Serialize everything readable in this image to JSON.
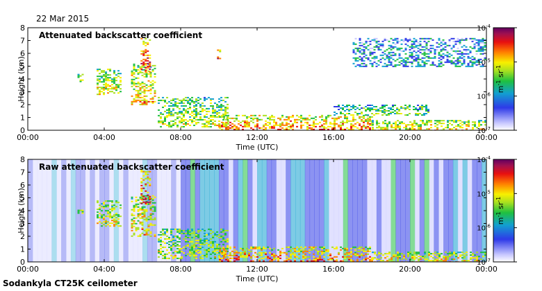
{
  "date_label": "22 Mar 2015",
  "footer_label": "Sodankyla CT25K ceilometer",
  "chart_data": [
    {
      "type": "heatmap",
      "title": "Attenuated backscatter coefficient",
      "xlabel": "Time (UTC)",
      "ylabel": "Height (km)",
      "xlim": [
        0,
        24
      ],
      "ylim": [
        0,
        8
      ],
      "x_ticks": [
        "00:00",
        "04:00",
        "08:00",
        "12:00",
        "16:00",
        "20:00",
        "00:00"
      ],
      "y_ticks": [
        "0",
        "1",
        "2",
        "3",
        "4",
        "5",
        "6",
        "7",
        "8"
      ],
      "colorbar": {
        "label": "m-1 sr-1",
        "scale": "log",
        "range": [
          1e-07,
          0.0001
        ],
        "ticks": [
          {
            "base": "10",
            "exp": "-7"
          },
          {
            "base": "10",
            "exp": "-6"
          },
          {
            "base": "10",
            "exp": "-5"
          },
          {
            "base": "10",
            "exp": "-4"
          }
        ]
      },
      "noise_background": false,
      "features": [
        {
          "t": [
            2.6,
            2.9
          ],
          "h": [
            3.8,
            4.4
          ],
          "level": 0.55
        },
        {
          "t": [
            3.6,
            4.9
          ],
          "h": [
            2.8,
            4.8
          ],
          "level": 0.6
        },
        {
          "t": [
            5.4,
            6.7
          ],
          "h": [
            2.0,
            5.2
          ],
          "level": 0.65
        },
        {
          "t": [
            5.9,
            6.4
          ],
          "h": [
            4.6,
            7.2
          ],
          "level": 0.85
        },
        {
          "t": [
            6.8,
            10.5
          ],
          "h": [
            0.3,
            2.6
          ],
          "level": 0.55
        },
        {
          "t": [
            10.0,
            18.0
          ],
          "h": [
            0.0,
            1.2
          ],
          "level": 0.75
        },
        {
          "t": [
            18.0,
            24.0
          ],
          "h": [
            0.0,
            0.8
          ],
          "level": 0.65
        },
        {
          "t": [
            9.9,
            10.1
          ],
          "h": [
            5.5,
            6.3
          ],
          "level": 0.9
        },
        {
          "t": [
            16.0,
            21.0
          ],
          "h": [
            1.2,
            2.0
          ],
          "level": 0.45
        },
        {
          "t": [
            17.0,
            24.0
          ],
          "h": [
            5.0,
            7.2
          ],
          "level": 0.3
        }
      ]
    },
    {
      "type": "heatmap",
      "title": "Raw attenuated backscatter coefficient",
      "xlabel": "Time (UTC)",
      "ylabel": "Height (km)",
      "xlim": [
        0,
        24
      ],
      "ylim": [
        0,
        8
      ],
      "x_ticks": [
        "00:00",
        "04:00",
        "08:00",
        "12:00",
        "16:00",
        "20:00",
        "00:00"
      ],
      "y_ticks": [
        "0",
        "1",
        "2",
        "3",
        "4",
        "5",
        "6",
        "7",
        "8"
      ],
      "colorbar": {
        "label": "m-1 sr-1",
        "scale": "log",
        "range": [
          1e-07,
          0.0001
        ],
        "ticks": [
          {
            "base": "10",
            "exp": "-7"
          },
          {
            "base": "10",
            "exp": "-6"
          },
          {
            "base": "10",
            "exp": "-5"
          },
          {
            "base": "10",
            "exp": "-4"
          }
        ]
      },
      "noise_background": true,
      "features": [
        {
          "t": [
            2.6,
            2.9
          ],
          "h": [
            3.8,
            4.4
          ],
          "level": 0.55
        },
        {
          "t": [
            3.6,
            4.9
          ],
          "h": [
            2.8,
            4.8
          ],
          "level": 0.6
        },
        {
          "t": [
            5.4,
            6.7
          ],
          "h": [
            2.0,
            5.2
          ],
          "level": 0.65
        },
        {
          "t": [
            5.9,
            6.4
          ],
          "h": [
            4.6,
            7.2
          ],
          "level": 0.85
        },
        {
          "t": [
            6.8,
            10.5
          ],
          "h": [
            0.3,
            2.6
          ],
          "level": 0.55
        },
        {
          "t": [
            10.0,
            18.0
          ],
          "h": [
            0.0,
            1.2
          ],
          "level": 0.75
        },
        {
          "t": [
            18.0,
            24.0
          ],
          "h": [
            0.0,
            0.8
          ],
          "level": 0.65
        }
      ]
    }
  ]
}
